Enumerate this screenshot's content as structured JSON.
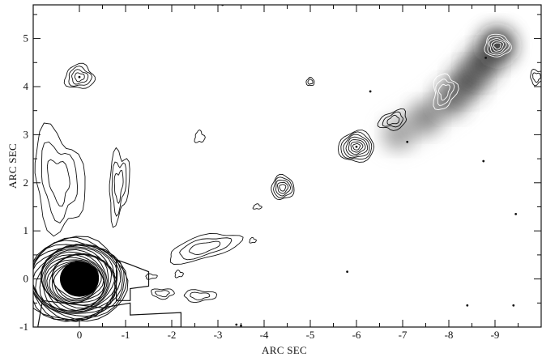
{
  "chart_data": {
    "type": "contour",
    "xlabel": "ARC SEC",
    "ylabel": "ARC SEC",
    "xlim": [
      1,
      -10
    ],
    "ylim": [
      -1,
      5.7
    ],
    "x_ticks": [
      "0",
      "-1",
      "-2",
      "-3",
      "-4",
      "-5",
      "-6",
      "-7",
      "-8",
      "-9"
    ],
    "x_tick_values": [
      0,
      -1,
      -2,
      -3,
      -4,
      -5,
      -6,
      -7,
      -8,
      -9
    ],
    "y_ticks": [
      "-1",
      "0",
      "1",
      "2",
      "3",
      "4",
      "5"
    ],
    "y_tick_values": [
      -1,
      0,
      1,
      2,
      3,
      4,
      5
    ],
    "grid": false,
    "contour_color": "#111111",
    "core_source": {
      "x": 0,
      "y": 0,
      "peak": "saturated"
    },
    "sources": [
      {
        "x": 0.0,
        "y": 4.2
      },
      {
        "x": -4.4,
        "y": 1.9
      },
      {
        "x": -6.0,
        "y": 2.75
      },
      {
        "x": -6.8,
        "y": 3.3
      },
      {
        "x": -7.9,
        "y": 3.9
      },
      {
        "x": -9.05,
        "y": 4.85
      },
      {
        "x": -5.0,
        "y": 4.1
      },
      {
        "x": -2.7,
        "y": 0.65
      },
      {
        "x": 0.4,
        "y": 2.1
      },
      {
        "x": -0.9,
        "y": 1.95
      },
      {
        "x": -1.8,
        "y": -0.3
      },
      {
        "x": -2.6,
        "y": -0.35
      }
    ],
    "grayscale_jet": [
      {
        "x": -6.9,
        "y": 3.0,
        "intensity": 0.45
      },
      {
        "x": -7.5,
        "y": 3.35,
        "intensity": 0.6
      },
      {
        "x": -8.05,
        "y": 3.75,
        "intensity": 0.75
      },
      {
        "x": -8.4,
        "y": 4.1,
        "intensity": 0.85
      },
      {
        "x": -8.7,
        "y": 4.45,
        "intensity": 0.85
      },
      {
        "x": -9.05,
        "y": 4.85,
        "intensity": 1.0
      }
    ]
  }
}
